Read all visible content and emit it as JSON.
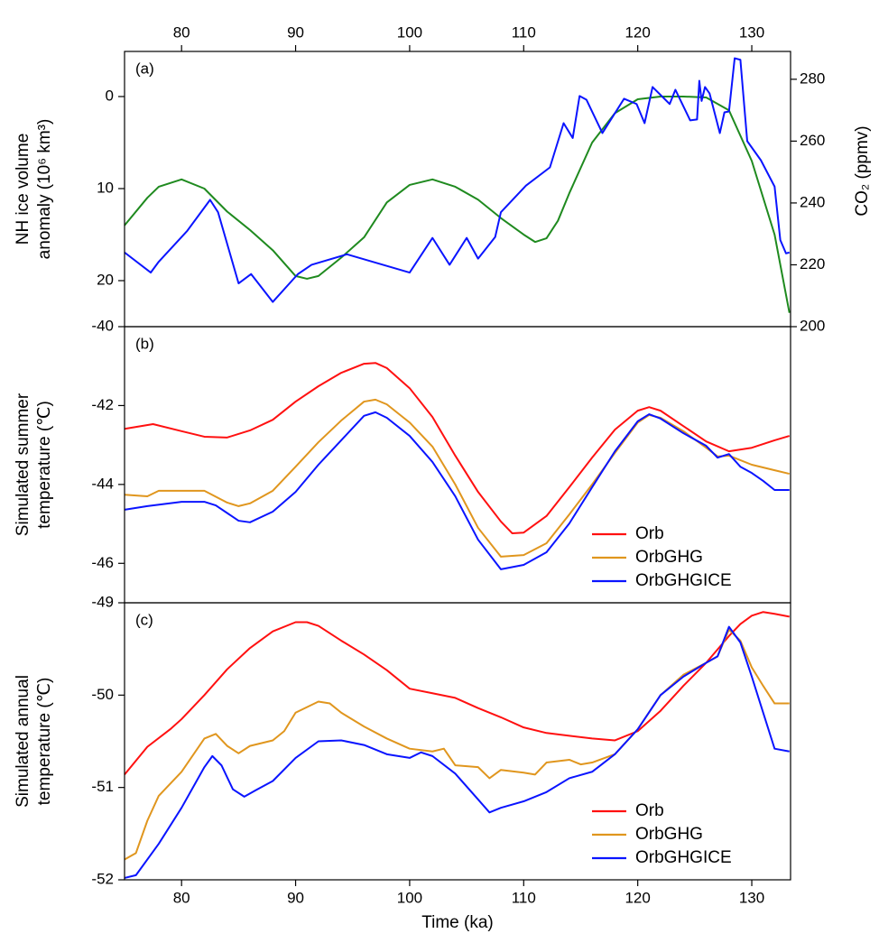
{
  "chart_data": [
    {
      "type": "line",
      "panel_label": "(a)",
      "xaxis": "top",
      "ylabel": [
        "NH ice volume",
        "anomaly (10⁶ km³)"
      ],
      "y2label": "CO₂ (ppmv)",
      "xlim": [
        75,
        133.4
      ],
      "xticks": [
        80,
        90,
        100,
        110,
        120,
        130
      ],
      "ylim": [
        25,
        -4.9
      ],
      "yticks": [
        0,
        10,
        20
      ],
      "y2lim": [
        200,
        289
      ],
      "y2ticks": [
        200,
        220,
        240,
        260,
        280
      ],
      "series": [
        {
          "color": "#1f8a1f",
          "x": [
            75,
            77,
            78,
            80,
            82,
            84,
            86,
            88,
            90,
            91,
            92,
            94,
            96,
            98,
            100,
            102,
            104,
            106,
            108,
            110,
            111,
            112,
            113,
            114,
            116,
            118,
            120,
            122,
            124,
            126,
            128,
            130,
            132,
            133.3
          ],
          "values": [
            14,
            11,
            9.8,
            9,
            10,
            12.5,
            14.5,
            16.7,
            19.5,
            19.8,
            19.5,
            17.5,
            15.3,
            11.5,
            9.6,
            9,
            9.8,
            11.2,
            13.2,
            15,
            15.8,
            15.4,
            13.5,
            10.5,
            5,
            1.8,
            0.3,
            0,
            0,
            0.1,
            1.5,
            7,
            15,
            23.5
          ]
        },
        {
          "color": "#0a14ff",
          "axis": "y2",
          "x": [
            75,
            77.3,
            78,
            80.5,
            82.5,
            83.2,
            85,
            86.1,
            88,
            90.2,
            91.4,
            94.5,
            100,
            102,
            103.5,
            105,
            106,
            107.5,
            108,
            110.2,
            112.3,
            113.5,
            114.3,
            114.9,
            115.5,
            116.9,
            118.8,
            119.9,
            120.6,
            121.3,
            122.8,
            123.3,
            124.6,
            125.2,
            125.4,
            125.6,
            125.9,
            126.3,
            127.2,
            127.6,
            128,
            128.5,
            129,
            129.6,
            130.8,
            132,
            132.5,
            133,
            133.3
          ],
          "values": [
            224,
            217.5,
            221,
            231,
            241,
            237,
            214,
            217,
            208,
            217,
            220,
            223.4,
            217.5,
            228.7,
            220,
            228.7,
            222,
            229,
            237,
            245.6,
            251.5,
            265.8,
            261,
            274.6,
            273.4,
            262.6,
            273.7,
            272,
            265.8,
            277.5,
            272,
            276.6,
            266.7,
            267,
            279.5,
            273,
            277.5,
            275.4,
            262.6,
            269.3,
            269.6,
            286.8,
            286.3,
            260,
            253.8,
            245.3,
            228,
            223.7,
            224
          ]
        }
      ]
    },
    {
      "type": "line",
      "panel_label": "(b)",
      "ylabel": [
        "Simulated summer",
        "temperature (℃)"
      ],
      "xlim": [
        75,
        133.4
      ],
      "ylim": [
        -47,
        -40
      ],
      "yticks": [
        -40,
        -42,
        -44,
        -46
      ],
      "legend": "lower right",
      "series": [
        {
          "name": "Orb",
          "color": "#ff1010",
          "x": [
            75,
            77.5,
            80,
            82,
            84,
            86,
            88,
            90,
            92,
            94,
            96,
            97,
            98,
            100,
            102,
            104,
            106,
            108,
            109,
            110,
            112,
            114,
            116,
            118,
            120,
            121,
            122,
            124,
            126,
            128,
            130,
            132,
            133.3
          ],
          "values": [
            -42.59,
            -42.47,
            -42.65,
            -42.79,
            -42.81,
            -42.63,
            -42.36,
            -41.9,
            -41.51,
            -41.17,
            -40.94,
            -40.92,
            -41.05,
            -41.56,
            -42.29,
            -43.27,
            -44.19,
            -44.94,
            -45.24,
            -45.22,
            -44.8,
            -44.07,
            -43.32,
            -42.61,
            -42.13,
            -42.04,
            -42.13,
            -42.52,
            -42.91,
            -43.16,
            -43.07,
            -42.88,
            -42.77
          ]
        },
        {
          "name": "OrbGHG",
          "color": "#e0961e",
          "x": [
            75,
            77,
            78,
            80,
            82,
            84,
            85,
            86,
            88,
            90,
            92,
            94,
            96,
            97,
            98,
            100,
            102,
            104,
            106,
            108,
            110,
            112,
            114,
            116,
            118,
            120,
            121,
            122,
            124,
            126,
            127,
            128,
            130,
            132,
            133.3
          ],
          "values": [
            -44.26,
            -44.3,
            -44.16,
            -44.16,
            -44.16,
            -44.46,
            -44.55,
            -44.48,
            -44.16,
            -43.55,
            -42.93,
            -42.38,
            -41.9,
            -41.85,
            -41.97,
            -42.43,
            -43.04,
            -44.0,
            -45.1,
            -45.83,
            -45.79,
            -45.49,
            -44.76,
            -44.0,
            -43.2,
            -42.43,
            -42.24,
            -42.31,
            -42.65,
            -43.07,
            -43.29,
            -43.27,
            -43.5,
            -43.64,
            -43.73
          ]
        },
        {
          "name": "OrbGHGICE",
          "color": "#0a14ff",
          "x": [
            75,
            77,
            80,
            82,
            83,
            85,
            86,
            88,
            90,
            92,
            94,
            96,
            97,
            98,
            100,
            102,
            104,
            106,
            108,
            110,
            112,
            114,
            116,
            118,
            120,
            121,
            122,
            124,
            126,
            127,
            128,
            129,
            130,
            131,
            132,
            133.3
          ],
          "values": [
            -44.64,
            -44.55,
            -44.44,
            -44.44,
            -44.53,
            -44.92,
            -44.96,
            -44.69,
            -44.19,
            -43.5,
            -42.88,
            -42.26,
            -42.17,
            -42.31,
            -42.77,
            -43.43,
            -44.3,
            -45.4,
            -46.15,
            -46.04,
            -45.72,
            -44.99,
            -44.07,
            -43.16,
            -42.4,
            -42.22,
            -42.33,
            -42.7,
            -43.02,
            -43.32,
            -43.23,
            -43.55,
            -43.71,
            -43.91,
            -44.14,
            -44.14
          ]
        }
      ]
    },
    {
      "type": "line",
      "panel_label": "(c)",
      "xaxis": "bottom",
      "xlabel": "Time (ka)",
      "ylabel": [
        "Simulated annual",
        "temperature (℃)"
      ],
      "xlim": [
        75,
        133.4
      ],
      "xticks": [
        80,
        90,
        100,
        110,
        120,
        130
      ],
      "ylim": [
        -52,
        -49
      ],
      "yticks": [
        -52,
        -51,
        -50,
        -49
      ],
      "legend": "lower right",
      "series": [
        {
          "name": "Orb",
          "color": "#ff1010",
          "x": [
            75,
            77,
            79,
            80,
            82,
            84,
            86,
            88,
            90,
            91,
            92,
            94,
            96,
            98,
            100,
            102,
            104,
            106,
            108,
            110,
            112,
            114,
            116,
            118,
            120,
            122,
            124,
            126,
            128,
            129,
            130,
            131,
            132,
            133.3
          ],
          "values": [
            -50.86,
            -50.56,
            -50.37,
            -50.26,
            -50.0,
            -49.72,
            -49.49,
            -49.31,
            -49.21,
            -49.21,
            -49.25,
            -49.41,
            -49.56,
            -49.73,
            -49.93,
            -49.98,
            -50.03,
            -50.14,
            -50.24,
            -50.35,
            -50.41,
            -50.44,
            -50.47,
            -50.49,
            -50.39,
            -50.17,
            -49.9,
            -49.65,
            -49.36,
            -49.23,
            -49.14,
            -49.1,
            -49.12,
            -49.15
          ]
        },
        {
          "name": "OrbGHG",
          "color": "#e0961e",
          "x": [
            75,
            76,
            77,
            78,
            80,
            82,
            83,
            84,
            85,
            86,
            88,
            89,
            90,
            92,
            93,
            94,
            96,
            98,
            100,
            102,
            103,
            104,
            106,
            107,
            108,
            110,
            111,
            112,
            114,
            115,
            116,
            118,
            120,
            122,
            124,
            126,
            127,
            128,
            129,
            130,
            131,
            132,
            133.3
          ],
          "values": [
            -51.78,
            -51.71,
            -51.36,
            -51.09,
            -50.83,
            -50.47,
            -50.42,
            -50.55,
            -50.63,
            -50.55,
            -50.49,
            -50.39,
            -50.19,
            -50.07,
            -50.09,
            -50.19,
            -50.34,
            -50.47,
            -50.58,
            -50.61,
            -50.58,
            -50.76,
            -50.78,
            -50.9,
            -50.81,
            -50.84,
            -50.86,
            -50.73,
            -50.7,
            -50.75,
            -50.73,
            -50.64,
            -50.37,
            -50.0,
            -49.78,
            -49.65,
            -49.58,
            -49.29,
            -49.41,
            -49.7,
            -49.9,
            -50.09,
            -50.09
          ]
        },
        {
          "name": "OrbGHGICE",
          "color": "#0a14ff",
          "x": [
            75,
            76,
            78,
            80,
            82,
            82.7,
            83.5,
            84.5,
            85.5,
            86.5,
            88,
            90,
            92,
            94,
            96,
            98,
            100,
            101,
            102,
            104,
            106,
            107,
            108,
            110,
            112,
            114,
            116,
            118,
            120,
            122,
            124,
            126,
            127,
            128,
            129,
            130,
            131,
            132,
            133.3
          ],
          "values": [
            -51.98,
            -51.95,
            -51.61,
            -51.22,
            -50.78,
            -50.66,
            -50.76,
            -51.02,
            -51.1,
            -51.03,
            -50.93,
            -50.68,
            -50.5,
            -50.49,
            -50.54,
            -50.64,
            -50.68,
            -50.62,
            -50.66,
            -50.85,
            -51.13,
            -51.27,
            -51.22,
            -51.15,
            -51.05,
            -50.9,
            -50.83,
            -50.64,
            -50.37,
            -50.0,
            -49.8,
            -49.65,
            -49.58,
            -49.26,
            -49.43,
            -49.8,
            -50.19,
            -50.58,
            -50.61
          ]
        }
      ]
    }
  ]
}
